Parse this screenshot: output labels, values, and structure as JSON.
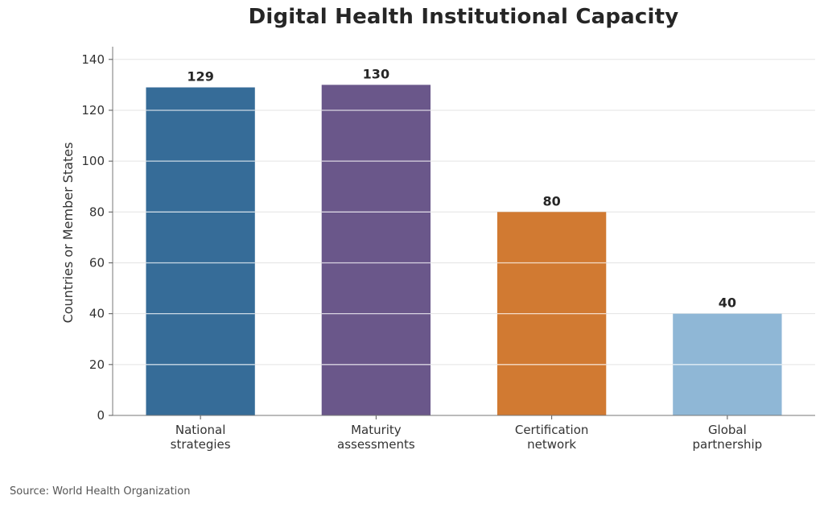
{
  "chart_data": {
    "type": "bar",
    "title": "Digital Health Institutional Capacity",
    "xlabel": "",
    "ylabel": "Countries or Member States",
    "ylim": [
      0,
      145
    ],
    "yticks": [
      0,
      20,
      40,
      60,
      80,
      100,
      120,
      140
    ],
    "grid": true,
    "categories": [
      [
        "National",
        "strategies"
      ],
      [
        "Maturity",
        "assessments"
      ],
      [
        "Certification",
        "network"
      ],
      [
        "Global",
        "partnership"
      ]
    ],
    "values": [
      129,
      130,
      80,
      40
    ],
    "data_labels": [
      "129",
      "130",
      "80",
      "40"
    ],
    "colors": [
      "#366c98",
      "#6a578a",
      "#d17a32",
      "#8fb7d6"
    ]
  },
  "source": "Source: World Health Organization"
}
